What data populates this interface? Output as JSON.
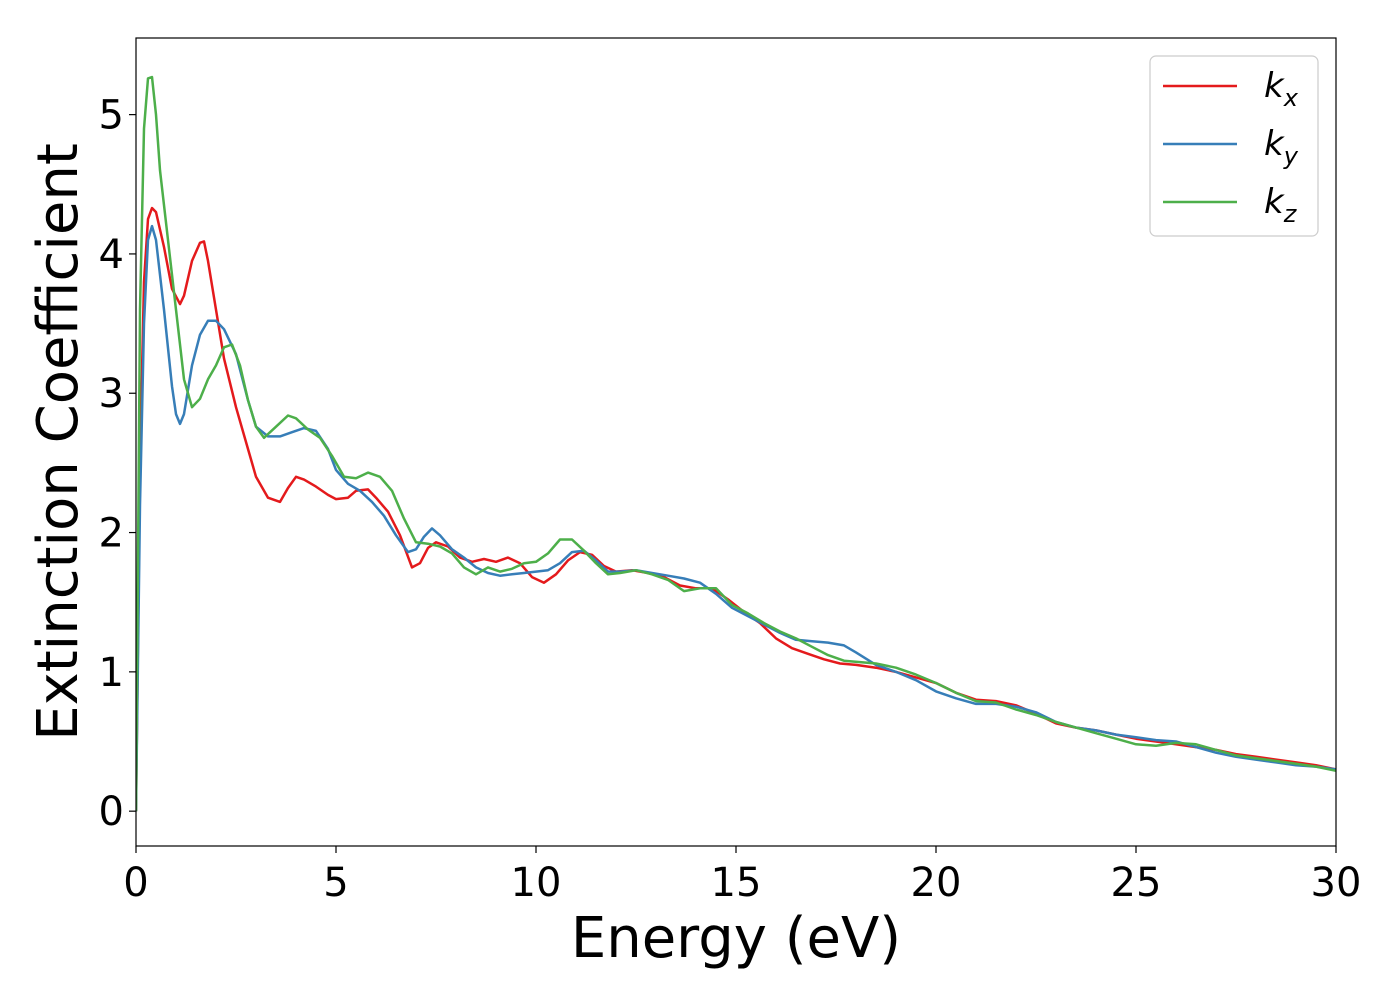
{
  "chart_data": {
    "type": "line",
    "title": "",
    "xlabel": "Energy (eV)",
    "ylabel": "Extinction Coefficient",
    "xlim": [
      0,
      30
    ],
    "ylim": [
      -0.25,
      5.55
    ],
    "xticks": [
      "0",
      "5",
      "10",
      "15",
      "20",
      "25",
      "30"
    ],
    "yticks": [
      "0",
      "1",
      "2",
      "3",
      "4",
      "5"
    ],
    "grid": false,
    "legend_position": "top-right",
    "series": [
      {
        "name": "k",
        "subscript": "x",
        "color": "#e41a1c",
        "x": [
          0,
          0.1,
          0.2,
          0.3,
          0.4,
          0.5,
          0.7,
          0.9,
          1.1,
          1.2,
          1.4,
          1.6,
          1.7,
          1.8,
          2.0,
          2.2,
          2.5,
          2.8,
          3.0,
          3.3,
          3.6,
          3.8,
          4.0,
          4.2,
          4.5,
          4.8,
          5.0,
          5.3,
          5.5,
          5.8,
          6.0,
          6.3,
          6.6,
          6.9,
          7.1,
          7.3,
          7.5,
          7.8,
          8.1,
          8.4,
          8.7,
          9.0,
          9.3,
          9.6,
          9.9,
          10.2,
          10.5,
          10.8,
          11.1,
          11.4,
          11.7,
          12.0,
          12.4,
          12.8,
          13.2,
          13.6,
          14.0,
          14.4,
          14.8,
          15.2,
          15.6,
          16.0,
          16.4,
          16.8,
          17.2,
          17.6,
          18.0,
          18.5,
          19.0,
          19.5,
          20.0,
          20.5,
          21.0,
          21.5,
          22.0,
          22.5,
          23.0,
          23.5,
          24.0,
          24.5,
          25.0,
          25.5,
          26.0,
          26.5,
          27.0,
          27.5,
          28.0,
          28.5,
          29.0,
          29.5,
          30.0
        ],
        "y": [
          0,
          2.5,
          3.8,
          4.25,
          4.33,
          4.3,
          4.05,
          3.75,
          3.64,
          3.7,
          3.95,
          4.08,
          4.09,
          3.95,
          3.6,
          3.25,
          2.9,
          2.6,
          2.4,
          2.25,
          2.22,
          2.32,
          2.4,
          2.38,
          2.33,
          2.27,
          2.24,
          2.25,
          2.3,
          2.31,
          2.25,
          2.15,
          1.98,
          1.75,
          1.78,
          1.89,
          1.93,
          1.9,
          1.82,
          1.79,
          1.81,
          1.79,
          1.82,
          1.78,
          1.68,
          1.64,
          1.7,
          1.8,
          1.86,
          1.84,
          1.76,
          1.72,
          1.73,
          1.71,
          1.68,
          1.62,
          1.6,
          1.6,
          1.52,
          1.43,
          1.35,
          1.24,
          1.17,
          1.13,
          1.09,
          1.06,
          1.05,
          1.03,
          1.0,
          0.96,
          0.92,
          0.85,
          0.8,
          0.79,
          0.76,
          0.7,
          0.63,
          0.6,
          0.58,
          0.55,
          0.52,
          0.5,
          0.48,
          0.46,
          0.44,
          0.41,
          0.39,
          0.37,
          0.35,
          0.33,
          0.3
        ]
      },
      {
        "name": "k",
        "subscript": "y",
        "color": "#377eb8",
        "x": [
          0,
          0.1,
          0.2,
          0.3,
          0.4,
          0.5,
          0.7,
          0.9,
          1.0,
          1.1,
          1.2,
          1.4,
          1.6,
          1.8,
          2.0,
          2.2,
          2.5,
          2.8,
          3.0,
          3.3,
          3.6,
          3.9,
          4.2,
          4.5,
          4.8,
          5.0,
          5.3,
          5.6,
          5.9,
          6.2,
          6.5,
          6.8,
          7.0,
          7.2,
          7.4,
          7.6,
          7.9,
          8.2,
          8.5,
          8.8,
          9.1,
          9.4,
          9.7,
          10.0,
          10.3,
          10.6,
          10.9,
          11.2,
          11.5,
          11.8,
          12.1,
          12.5,
          12.9,
          13.3,
          13.7,
          14.1,
          14.5,
          14.9,
          15.3,
          15.7,
          16.1,
          16.5,
          16.9,
          17.3,
          17.7,
          18.0,
          18.5,
          19.0,
          19.5,
          20.0,
          20.5,
          21.0,
          21.5,
          22.0,
          22.5,
          23.0,
          23.5,
          24.0,
          24.5,
          25.0,
          25.5,
          26.0,
          26.5,
          27.0,
          27.5,
          28.0,
          28.5,
          29.0,
          29.5,
          30.0
        ],
        "y": [
          0,
          2.2,
          3.5,
          4.1,
          4.2,
          4.1,
          3.6,
          3.05,
          2.85,
          2.78,
          2.85,
          3.2,
          3.42,
          3.52,
          3.52,
          3.46,
          3.28,
          2.95,
          2.76,
          2.69,
          2.69,
          2.72,
          2.75,
          2.73,
          2.6,
          2.45,
          2.35,
          2.3,
          2.22,
          2.12,
          1.98,
          1.86,
          1.88,
          1.97,
          2.03,
          1.98,
          1.88,
          1.82,
          1.75,
          1.71,
          1.69,
          1.7,
          1.71,
          1.72,
          1.73,
          1.78,
          1.86,
          1.87,
          1.8,
          1.72,
          1.72,
          1.73,
          1.71,
          1.69,
          1.67,
          1.64,
          1.56,
          1.46,
          1.4,
          1.34,
          1.28,
          1.23,
          1.22,
          1.21,
          1.19,
          1.14,
          1.05,
          1.0,
          0.94,
          0.86,
          0.81,
          0.77,
          0.77,
          0.75,
          0.71,
          0.64,
          0.6,
          0.58,
          0.55,
          0.53,
          0.51,
          0.5,
          0.46,
          0.42,
          0.39,
          0.37,
          0.35,
          0.33,
          0.32,
          0.3
        ]
      },
      {
        "name": "k",
        "subscript": "z",
        "color": "#4daf4a",
        "x": [
          0,
          0.1,
          0.2,
          0.3,
          0.4,
          0.5,
          0.6,
          0.8,
          1.0,
          1.2,
          1.4,
          1.6,
          1.8,
          2.0,
          2.2,
          2.4,
          2.6,
          2.8,
          3.0,
          3.2,
          3.5,
          3.8,
          4.0,
          4.3,
          4.6,
          4.9,
          5.2,
          5.5,
          5.8,
          6.1,
          6.4,
          6.7,
          7.0,
          7.3,
          7.6,
          7.9,
          8.2,
          8.5,
          8.8,
          9.1,
          9.4,
          9.7,
          10.0,
          10.3,
          10.6,
          10.9,
          11.2,
          11.5,
          11.8,
          12.1,
          12.5,
          12.9,
          13.3,
          13.7,
          14.1,
          14.5,
          14.9,
          15.3,
          15.7,
          16.1,
          16.5,
          16.9,
          17.3,
          17.7,
          18.1,
          18.5,
          19.0,
          19.5,
          20.0,
          20.5,
          21.0,
          21.5,
          22.0,
          22.5,
          23.0,
          23.5,
          24.0,
          24.5,
          25.0,
          25.5,
          26.0,
          26.5,
          27.0,
          27.5,
          28.0,
          28.5,
          29.0,
          29.5,
          30.0
        ],
        "y": [
          0,
          3.6,
          4.9,
          5.26,
          5.27,
          5.0,
          4.6,
          4.1,
          3.6,
          3.1,
          2.9,
          2.96,
          3.1,
          3.2,
          3.33,
          3.35,
          3.2,
          2.95,
          2.76,
          2.68,
          2.76,
          2.84,
          2.82,
          2.74,
          2.68,
          2.55,
          2.4,
          2.39,
          2.43,
          2.4,
          2.3,
          2.1,
          1.93,
          1.92,
          1.9,
          1.85,
          1.75,
          1.7,
          1.75,
          1.72,
          1.74,
          1.78,
          1.79,
          1.85,
          1.95,
          1.95,
          1.87,
          1.78,
          1.7,
          1.71,
          1.73,
          1.7,
          1.66,
          1.58,
          1.6,
          1.6,
          1.48,
          1.42,
          1.35,
          1.29,
          1.24,
          1.18,
          1.12,
          1.08,
          1.07,
          1.06,
          1.03,
          0.98,
          0.92,
          0.85,
          0.79,
          0.78,
          0.73,
          0.69,
          0.64,
          0.6,
          0.56,
          0.52,
          0.48,
          0.47,
          0.49,
          0.48,
          0.44,
          0.4,
          0.38,
          0.36,
          0.34,
          0.32,
          0.29
        ]
      }
    ]
  }
}
